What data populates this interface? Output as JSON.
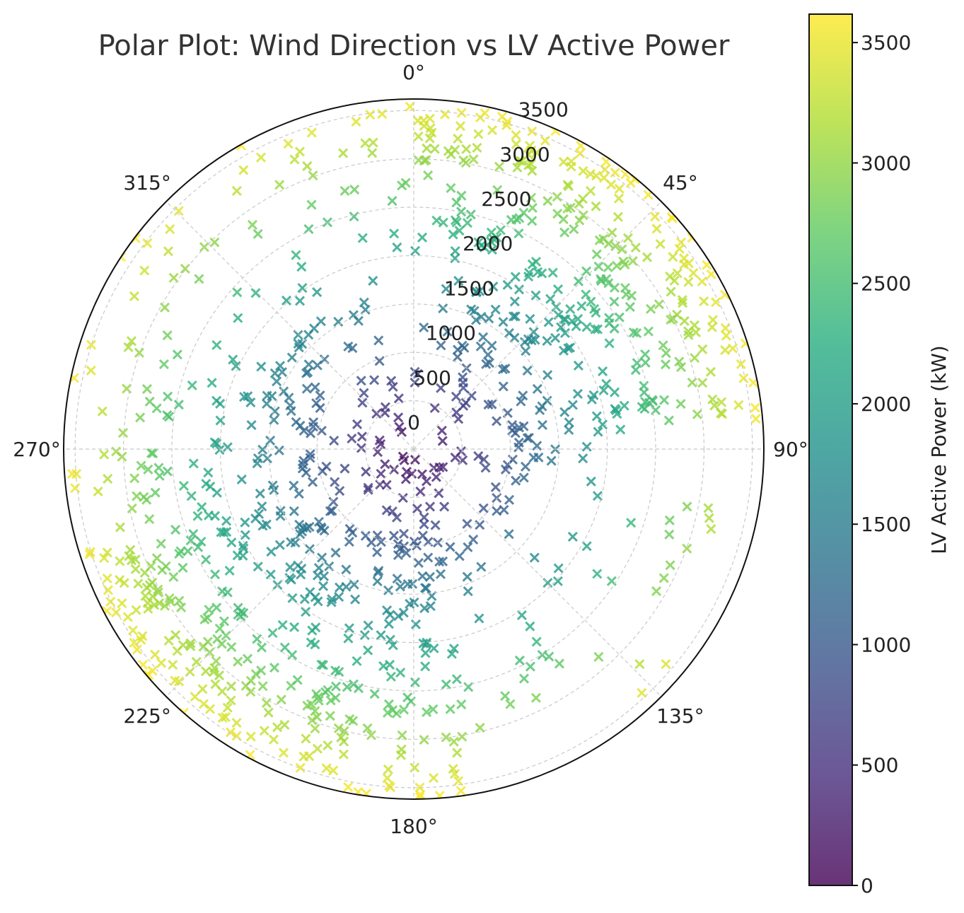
{
  "chart_data": {
    "type": "scatter",
    "projection": "polar",
    "title": "Polar Plot: Wind Direction vs LV Active Power",
    "theta_zero": "N",
    "theta_direction": "clockwise",
    "angle_ticks": [
      "0°",
      "45°",
      "90°",
      "135°",
      "180°",
      "225°",
      "270°",
      "315°"
    ],
    "radial_ticks": [
      "0",
      "500",
      "1000",
      "1500",
      "2000",
      "2500",
      "3000",
      "3500"
    ],
    "radial_tick_values": [
      0,
      500,
      1000,
      1500,
      2000,
      2500,
      3000,
      3500
    ],
    "rlim": [
      0,
      3618
    ],
    "grid": true,
    "marker": "x",
    "colormap": "viridis",
    "colorbar": {
      "label": "LV Active Power (kW)",
      "ticks": [
        "0",
        "500",
        "1000",
        "1500",
        "2000",
        "2500",
        "3000",
        "3500"
      ],
      "tick_values": [
        0,
        500,
        1000,
        1500,
        2000,
        2500,
        3000,
        3500
      ],
      "range": [
        0,
        3618
      ]
    },
    "series": [
      {
        "sectors": [
          {
            "theta": [
              0,
              20
            ],
            "r": [
              0,
              3618
            ],
            "density": 0.7
          },
          {
            "theta": [
              20,
              85
            ],
            "r": [
              0,
              3618
            ],
            "density": 1.0
          },
          {
            "theta": [
              85,
              95
            ],
            "r": [
              0,
              1900
            ],
            "density": 0.8
          },
          {
            "theta": [
              95,
              170
            ],
            "r": [
              0,
              1200
            ],
            "density": 0.9
          },
          {
            "theta": [
              100,
              145
            ],
            "r": [
              1200,
              3500
            ],
            "density": 0.15
          },
          {
            "theta": [
              145,
              170
            ],
            "r": [
              1200,
              3000
            ],
            "density": 0.35
          },
          {
            "theta": [
              170,
              250
            ],
            "r": [
              0,
              3618
            ],
            "density": 1.0
          },
          {
            "theta": [
              250,
              345
            ],
            "r": [
              0,
              1700
            ],
            "density": 0.9
          },
          {
            "theta": [
              250,
              310
            ],
            "r": [
              1700,
              3618
            ],
            "density": 0.4
          },
          {
            "theta": [
              310,
              360
            ],
            "r": [
              1700,
              3618
            ],
            "density": 0.25
          }
        ]
      }
    ]
  }
}
